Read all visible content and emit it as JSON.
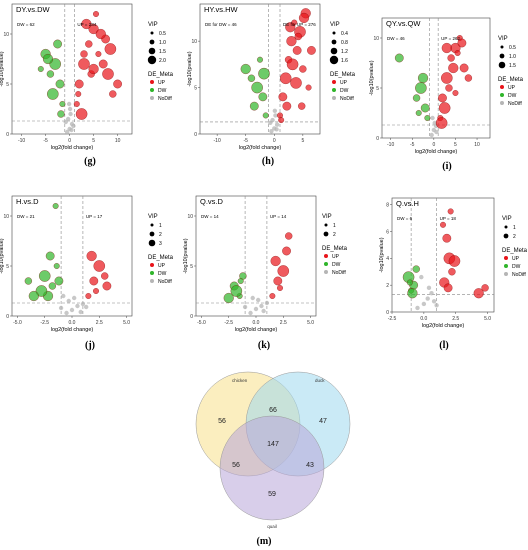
{
  "panels": [
    {
      "id": "g",
      "title": "DY.vs.DW",
      "caption": "(g)",
      "dw_label": "DW = 62",
      "up_label": "UP = 234",
      "xlabel": "log2(fold change)",
      "ylabel": "-log10(pvalue)",
      "xticks": [
        "-10",
        "-5",
        "0",
        "5",
        "10"
      ],
      "yticks": [
        "0",
        "5",
        "10"
      ],
      "vip_title": "VIP",
      "vip_levels": [
        "0.5",
        "1.0",
        "1.5",
        "2.0"
      ],
      "de_title": "DE_Meta",
      "de_levels": [
        "UP",
        "DW",
        "NoDiff"
      ]
    },
    {
      "id": "h",
      "title": "HY.vs.HW",
      "caption": "(h)",
      "dw_label": "DE for DW = 46",
      "up_label": "DE for UP = 276",
      "xlabel": "log2(fold change)",
      "ylabel": "-log10(pvalue)",
      "xticks": [
        "-10",
        "-5",
        "0",
        "5"
      ],
      "yticks": [
        "0",
        "5",
        "10"
      ],
      "vip_title": "VIP",
      "vip_levels": [
        "0.4",
        "0.8",
        "1.2",
        "1.6"
      ],
      "de_title": "DE_Meta",
      "de_levels": [
        "UP",
        "DW",
        "NoDiff"
      ]
    },
    {
      "id": "i",
      "title": "QY.vs.QW",
      "caption": "(i)",
      "dw_label": "DW = 46",
      "up_label": "UP = 262",
      "xlabel": "log2(fold change)",
      "ylabel": "-log10(pvalue)",
      "xticks": [
        "-10",
        "-5",
        "0",
        "5",
        "10"
      ],
      "yticks": [
        "0",
        "5",
        "10"
      ],
      "vip_title": "VIP",
      "vip_levels": [
        "0.5",
        "1.0",
        "1.5"
      ],
      "de_title": "DE_Meta",
      "de_levels": [
        "UP",
        "DW",
        "NoDiff"
      ]
    },
    {
      "id": "j",
      "title": "H.vs.D",
      "caption": "(j)",
      "dw_label": "DW = 21",
      "up_label": "UP = 17",
      "xlabel": "log2(fold change)",
      "ylabel": "-log10(pvalue)",
      "xticks": [
        "-5.0",
        "-2.5",
        "0.0",
        "2.5",
        "5.0"
      ],
      "yticks": [
        "0",
        "5",
        "10"
      ],
      "vip_title": "VIP",
      "vip_levels": [
        "1",
        "2",
        "3"
      ],
      "de_title": "DE_Meta",
      "de_levels": [
        "UP",
        "DW",
        "NoDiff"
      ]
    },
    {
      "id": "k",
      "title": "Q.vs.D",
      "caption": "(k)",
      "dw_label": "DW = 14",
      "up_label": "UP = 14",
      "xlabel": "log2(fold change)",
      "ylabel": "-log10(pvalue)",
      "xticks": [
        "-5.0",
        "-2.5",
        "0.0",
        "2.5",
        "5.0"
      ],
      "yticks": [
        "0",
        "5",
        "10"
      ],
      "vip_title": "VIP",
      "vip_levels": [
        "1",
        "2"
      ],
      "de_title": "DE_Meta",
      "de_levels": [
        "UP",
        "DW",
        "NoDiff"
      ]
    },
    {
      "id": "l",
      "title": "Q.vs.H",
      "caption": "(l)",
      "dw_label": "DW = 6",
      "up_label": "UP = 18",
      "xlabel": "log2(fold change)",
      "ylabel": "-log10(pvalue)",
      "xticks": [
        "-2.5",
        "0.0",
        "2.5",
        "5.0"
      ],
      "yticks": [
        "0",
        "2",
        "4",
        "6",
        "8"
      ],
      "vip_title": "VIP",
      "vip_levels": [
        "1",
        "2"
      ],
      "de_title": "DE_Meta",
      "de_levels": [
        "UP",
        "DW",
        "NoDiff"
      ]
    }
  ],
  "venn": {
    "caption": "(m)",
    "sets": [
      "chicken",
      "duck",
      "quail"
    ],
    "regions": {
      "chicken_only": "56",
      "duck_only": "47",
      "quail_only": "59",
      "chicken_duck": "66",
      "chicken_quail": "56",
      "duck_quail": "43",
      "all": "147"
    },
    "colors": [
      "#f7e08a",
      "#9fd8ee",
      "#b8a6d9"
    ]
  },
  "colors": {
    "up": "#e8141a",
    "dw": "#2fb52a",
    "nodiff": "#b5b5b5"
  },
  "chart_data": [
    {
      "type": "scatter",
      "title": "DY.vs.DW",
      "xlabel": "log2(fold change)",
      "ylabel": "-log10(pvalue)",
      "xlim": [
        -12,
        13
      ],
      "ylim": [
        0,
        13
      ],
      "xticks": [
        -10,
        -5,
        0,
        5,
        10
      ],
      "yticks": [
        0,
        5,
        10
      ],
      "counts": {
        "DW": 62,
        "UP": 234
      },
      "series": [
        {
          "name": "UP",
          "x": [
            1.5,
            2,
            3,
            4,
            5,
            6,
            7,
            8,
            9,
            3.5,
            5.5,
            7.5,
            2.5,
            4.5,
            6.5,
            1.8,
            10,
            8.5,
            3,
            5
          ],
          "y": [
            3,
            5,
            7,
            9,
            10.5,
            8,
            7,
            6,
            4,
            11,
            12,
            9.5,
            2,
            6,
            10,
            4,
            5,
            8.5,
            8,
            6.5
          ]
        },
        {
          "name": "DW",
          "x": [
            -1.5,
            -2,
            -3,
            -4,
            -5,
            -6,
            -2.5,
            -3.5,
            -1.8,
            -4.5
          ],
          "y": [
            3,
            5,
            7,
            6,
            8,
            6.5,
            9,
            4,
            2,
            7.5
          ]
        },
        {
          "name": "NoDiff",
          "x": [
            -0.5,
            0,
            0.5,
            -0.3,
            0.2,
            0.8,
            -0.8,
            0.1,
            -0.1,
            0.4
          ],
          "y": [
            0.2,
            0.5,
            1,
            1.5,
            2,
            0.8,
            1.2,
            2.5,
            3,
            0.4
          ]
        }
      ]
    },
    {
      "type": "scatter",
      "title": "HY.vs.HW",
      "xlabel": "log2(fold change)",
      "ylabel": "-log10(pvalue)",
      "xlim": [
        -13,
        8
      ],
      "ylim": [
        0,
        14
      ],
      "xticks": [
        -10,
        -5,
        0,
        5
      ],
      "yticks": [
        0,
        5,
        10
      ],
      "counts": {
        "DW": 46,
        "UP": 276
      },
      "series": [
        {
          "name": "UP",
          "x": [
            1,
            1.5,
            2,
            2.5,
            3,
            3.5,
            4,
            4.5,
            5,
            5.5,
            6,
            2.2,
            3.2,
            4.2,
            5.2,
            1.2,
            6.5,
            3.8,
            4.8,
            2.8
          ],
          "y": [
            2,
            4,
            6,
            8,
            10,
            12,
            9,
            11,
            7,
            13,
            5,
            3,
            7.5,
            10.5,
            12.5,
            1.5,
            9,
            5.5,
            3,
            11.5
          ]
        },
        {
          "name": "DW",
          "x": [
            -1.5,
            -2,
            -3,
            -4,
            -5,
            -2.5,
            -3.5,
            -1.8
          ],
          "y": [
            2,
            4,
            5,
            6,
            7,
            8,
            3,
            6.5
          ]
        },
        {
          "name": "NoDiff",
          "x": [
            -0.5,
            0,
            0.5,
            -0.3,
            0.2,
            0.4,
            -0.7,
            0.1
          ],
          "y": [
            0.3,
            0.6,
            1,
            1.5,
            2,
            0.5,
            1.2,
            2.5
          ]
        }
      ]
    },
    {
      "type": "scatter",
      "title": "QY.vs.QW",
      "xlabel": "log2(fold change)",
      "ylabel": "-log10(pvalue)",
      "xlim": [
        -12,
        13
      ],
      "ylim": [
        0,
        12
      ],
      "xticks": [
        -10,
        -5,
        0,
        5,
        10
      ],
      "yticks": [
        0,
        5,
        10
      ],
      "counts": {
        "DW": 46,
        "UP": 262
      },
      "series": [
        {
          "name": "UP",
          "x": [
            1.5,
            2,
            3,
            4,
            5,
            6,
            7,
            2.5,
            3.5,
            4.5,
            5.5,
            6.5,
            1.8,
            8,
            3,
            5
          ],
          "y": [
            2,
            4,
            6,
            8,
            9,
            10,
            7,
            3,
            5,
            7,
            8.5,
            9.5,
            1.5,
            6,
            9,
            4.5
          ]
        },
        {
          "name": "DW",
          "x": [
            -1.5,
            -2,
            -3,
            -4,
            -2.5,
            -3.5,
            -8
          ],
          "y": [
            2,
            3,
            5,
            4,
            6,
            2.5,
            8
          ]
        },
        {
          "name": "NoDiff",
          "x": [
            -0.5,
            0,
            0.5,
            -0.3,
            0.2,
            0.6
          ],
          "y": [
            0.3,
            0.8,
            1.2,
            2,
            1.5,
            0.6
          ]
        }
      ]
    },
    {
      "type": "scatter",
      "title": "H.vs.D",
      "xlabel": "log2(fold change)",
      "ylabel": "-log10(pvalue)",
      "xlim": [
        -5.5,
        5.5
      ],
      "ylim": [
        0,
        12
      ],
      "xticks": [
        -5,
        -2.5,
        0,
        2.5,
        5
      ],
      "yticks": [
        0,
        5,
        10
      ],
      "counts": {
        "DW": 21,
        "UP": 17
      },
      "series": [
        {
          "name": "UP",
          "x": [
            1.5,
            2,
            2.5,
            3,
            1.8,
            2.2,
            3.2
          ],
          "y": [
            2,
            3.5,
            5,
            4,
            6,
            2.5,
            3
          ]
        },
        {
          "name": "DW",
          "x": [
            -1.5,
            -2,
            -2.5,
            -1.8,
            -2.2,
            -1.4,
            -1.2,
            -2.8,
            -4,
            -3.5
          ],
          "y": [
            11,
            6,
            4,
            3,
            2,
            5,
            3.5,
            2.5,
            3.5,
            2
          ]
        },
        {
          "name": "NoDiff",
          "x": [
            -0.5,
            0,
            0.5,
            -1,
            1,
            0.2,
            -0.3,
            0.8,
            -0.8,
            1.3
          ],
          "y": [
            0.3,
            0.6,
            1,
            0.8,
            1.2,
            1.8,
            1.5,
            0.4,
            2,
            0.9
          ]
        }
      ]
    },
    {
      "type": "scatter",
      "title": "Q.vs.D",
      "xlabel": "log2(fold change)",
      "ylabel": "-log10(pvalue)",
      "xlim": [
        -5.5,
        5.5
      ],
      "ylim": [
        0,
        12
      ],
      "xticks": [
        -5,
        -2.5,
        0,
        2.5,
        5
      ],
      "yticks": [
        0,
        5,
        10
      ],
      "counts": {
        "DW": 14,
        "UP": 14
      },
      "series": [
        {
          "name": "UP",
          "x": [
            1.5,
            2,
            2.5,
            3,
            1.8,
            2.2,
            2.8
          ],
          "y": [
            2,
            3.5,
            4.5,
            8,
            5.5,
            2.8,
            6.5
          ]
        },
        {
          "name": "DW",
          "x": [
            -1.5,
            -2,
            -1.8,
            -1.2,
            -2.5,
            -1.4
          ],
          "y": [
            2,
            3,
            2.5,
            4,
            1.8,
            3.5
          ]
        },
        {
          "name": "NoDiff",
          "x": [
            -0.5,
            0,
            0.5,
            -1,
            1,
            0.2,
            -0.3,
            0.7
          ],
          "y": [
            0.3,
            0.7,
            1,
            0.9,
            1.3,
            1.6,
            1.8,
            0.5
          ]
        }
      ]
    },
    {
      "type": "scatter",
      "title": "Q.vs.H",
      "xlabel": "log2(fold change)",
      "ylabel": "-log10(pvalue)",
      "xlim": [
        -2.5,
        5.5
      ],
      "ylim": [
        0,
        8.5
      ],
      "xticks": [
        -2.5,
        0,
        2.5,
        5
      ],
      "yticks": [
        0,
        2,
        4,
        6,
        8
      ],
      "counts": {
        "DW": 6,
        "UP": 18
      },
      "series": [
        {
          "name": "UP",
          "x": [
            1.5,
            1.8,
            2,
            2.2,
            1.6,
            2.1,
            1.9,
            2.4,
            4.8,
            4.3
          ],
          "y": [
            6.5,
            5.5,
            4,
            3,
            2.2,
            7.5,
            1.8,
            3.8,
            1.8,
            1.4
          ]
        },
        {
          "name": "DW",
          "x": [
            -1,
            -0.8,
            -1.2,
            -0.6,
            -0.9,
            -1.1
          ],
          "y": [
            1.6,
            2,
            2.6,
            3.2,
            1.4,
            2.2
          ]
        },
        {
          "name": "NoDiff",
          "x": [
            -0.5,
            0,
            0.3,
            0.6,
            0.8,
            -0.2,
            0.4,
            1
          ],
          "y": [
            0.3,
            0.6,
            1,
            1.4,
            0.8,
            2.6,
            1.8,
            0.5
          ]
        }
      ]
    }
  ]
}
